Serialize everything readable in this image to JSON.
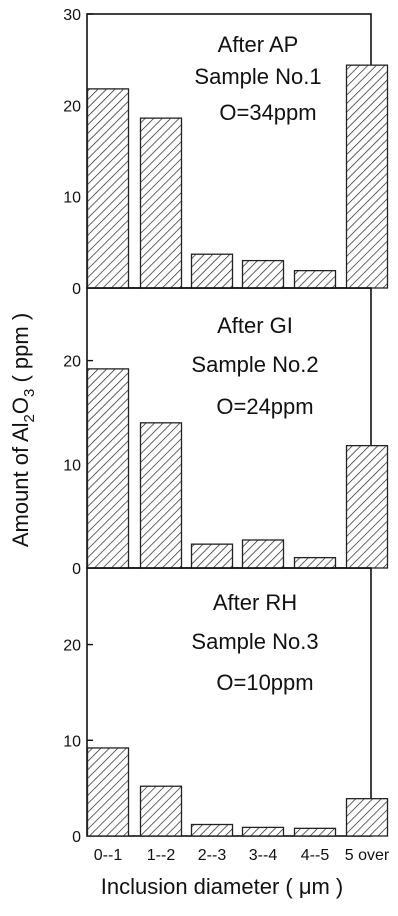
{
  "chart_data": [
    {
      "type": "bar",
      "annotations": [
        "After AP",
        "Sample No.1",
        "O=34ppm"
      ],
      "categories": [
        "0--1",
        "1--2",
        "2--3",
        "3--4",
        "4--5",
        "5 over"
      ],
      "values": [
        21.8,
        18.6,
        3.7,
        3.0,
        1.9,
        24.4
      ],
      "ylim": [
        0,
        30
      ],
      "yticks": [
        "0",
        "10",
        "20",
        "30"
      ],
      "ytick_values": [
        0,
        10,
        20,
        30
      ]
    },
    {
      "type": "bar",
      "annotations": [
        "After GI",
        "Sample No.2",
        "O=24ppm"
      ],
      "categories": [
        "0--1",
        "1--2",
        "2--3",
        "3--4",
        "4--5",
        "5 over"
      ],
      "values": [
        19.2,
        14.0,
        2.3,
        2.7,
        1.0,
        11.8
      ],
      "ylim": [
        0,
        27
      ],
      "yticks": [
        "0",
        "10",
        "20"
      ],
      "ytick_values": [
        0,
        10,
        20
      ]
    },
    {
      "type": "bar",
      "annotations": [
        "After RH",
        "Sample No.3",
        "O=10ppm"
      ],
      "categories": [
        "0--1",
        "1--2",
        "2--3",
        "3--4",
        "4--5",
        "5 over"
      ],
      "values": [
        9.2,
        5.2,
        1.2,
        0.9,
        0.8,
        3.9
      ],
      "ylim": [
        0,
        28
      ],
      "yticks": [
        "0",
        "10",
        "20"
      ],
      "ytick_values": [
        0,
        10,
        20
      ]
    }
  ],
  "axes": {
    "ylabel": "Amount of Al2O3 ( ppm )",
    "xlabel": "Inclusion diameter ( μm )"
  },
  "style": {
    "bar_hatch_color": "#222222",
    "axis_color": "#111111"
  }
}
